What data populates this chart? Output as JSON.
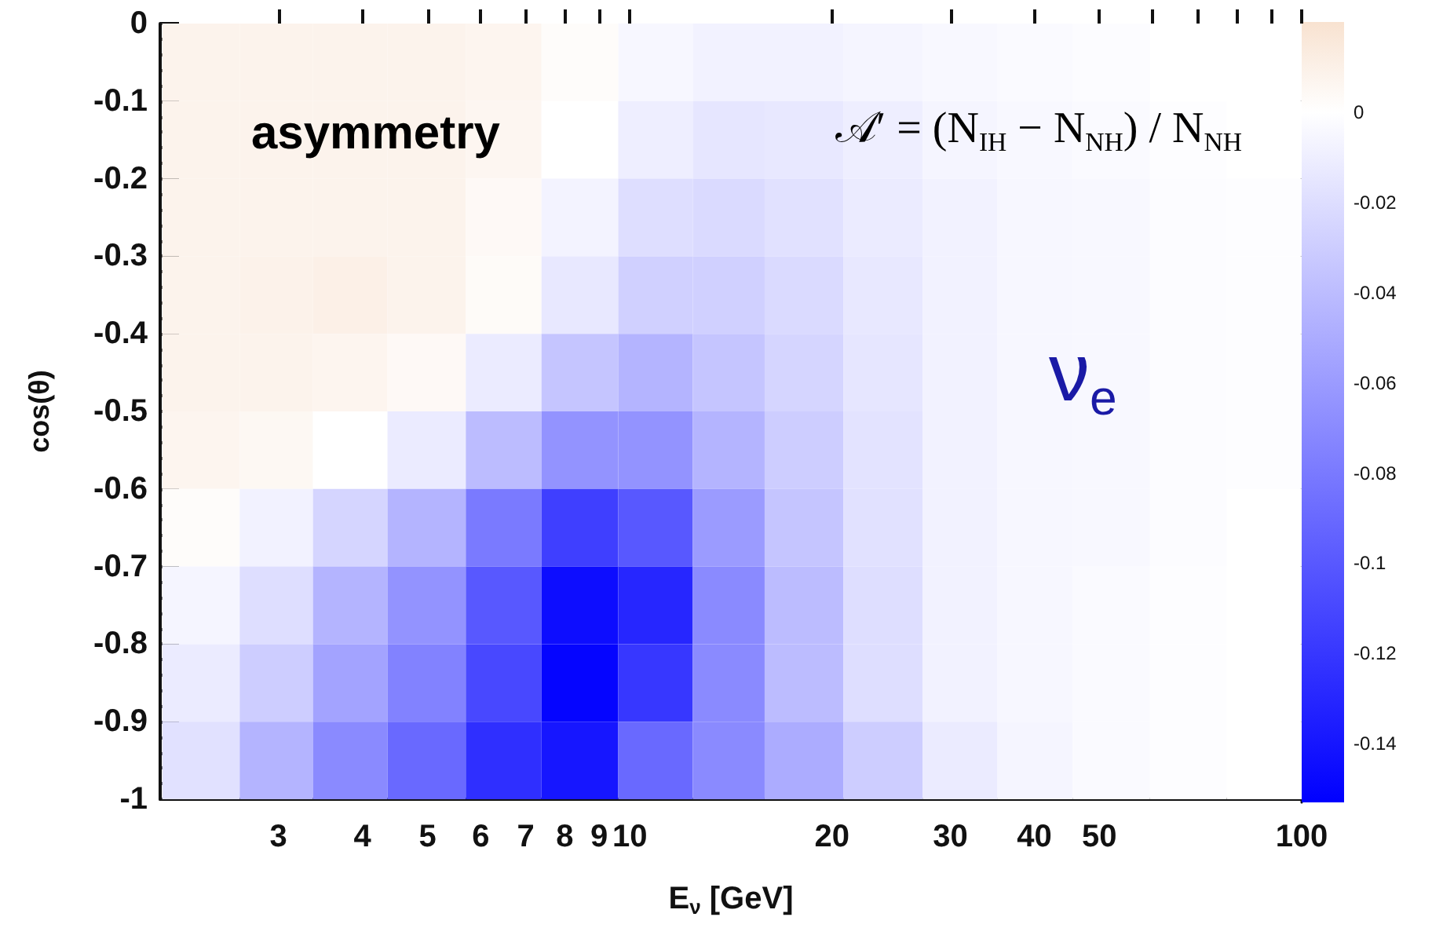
{
  "chart_data": {
    "type": "heatmap",
    "xlabel": "E$_{ν}$ [GeV]",
    "ylabel": "cos(θ)",
    "log": "x",
    "xlim": [
      2,
      100
    ],
    "xticks": [
      3,
      4,
      5,
      6,
      7,
      8,
      9,
      10,
      20,
      30,
      40,
      50,
      {
        "value": 60,
        "label": null
      },
      {
        "value": 70,
        "label": null
      },
      {
        "value": 80,
        "label": null
      },
      {
        "value": 90,
        "label": null
      },
      100
    ],
    "ylim": [
      -1,
      0
    ],
    "yticks": [
      0,
      -0.1,
      -0.2,
      -0.3,
      -0.4,
      -0.5,
      -0.6,
      -0.7,
      -0.8,
      -0.9,
      -1
    ],
    "x": [
      2.3,
      3,
      3.8,
      5,
      6.5,
      8.4,
      11,
      14,
      18,
      24,
      31,
      40,
      52,
      68,
      88
    ],
    "cells": [
      [
        0.008,
        0.008,
        0.008,
        0.008,
        0.007,
        0.002,
        -0.005,
        -0.008,
        -0.008,
        -0.006,
        -0.004,
        -0.003,
        -0.002,
        0,
        0
      ],
      [
        0.008,
        0.008,
        0.008,
        0.008,
        0.006,
        0,
        -0.01,
        -0.015,
        -0.014,
        -0.01,
        -0.006,
        -0.004,
        -0.003,
        -0.001,
        0
      ],
      [
        0.008,
        0.008,
        0.008,
        0.008,
        0.004,
        -0.007,
        -0.02,
        -0.022,
        -0.018,
        -0.012,
        -0.008,
        -0.005,
        -0.004,
        -0.002,
        -0.001
      ],
      [
        0.008,
        0.009,
        0.01,
        0.008,
        0.003,
        -0.014,
        -0.028,
        -0.028,
        -0.022,
        -0.014,
        -0.008,
        -0.005,
        -0.004,
        -0.002,
        -0.001
      ],
      [
        0.008,
        0.008,
        0.007,
        0.004,
        -0.012,
        -0.035,
        -0.045,
        -0.035,
        -0.025,
        -0.015,
        -0.008,
        -0.005,
        -0.004,
        -0.002,
        -0.001
      ],
      [
        0.007,
        0.005,
        0,
        -0.012,
        -0.04,
        -0.065,
        -0.065,
        -0.045,
        -0.03,
        -0.017,
        -0.008,
        -0.005,
        -0.004,
        -0.002,
        -0.001
      ],
      [
        0.002,
        -0.008,
        -0.025,
        -0.045,
        -0.08,
        -0.115,
        -0.1,
        -0.06,
        -0.035,
        -0.018,
        -0.008,
        -0.005,
        -0.004,
        -0.002,
        0
      ],
      [
        -0.006,
        -0.02,
        -0.045,
        -0.065,
        -0.1,
        -0.145,
        -0.13,
        -0.07,
        -0.04,
        -0.02,
        -0.008,
        -0.005,
        -0.003,
        -0.001,
        0
      ],
      [
        -0.012,
        -0.03,
        -0.055,
        -0.075,
        -0.11,
        -0.15,
        -0.12,
        -0.07,
        -0.04,
        -0.02,
        -0.008,
        -0.005,
        -0.003,
        -0.001,
        0
      ],
      [
        -0.018,
        -0.045,
        -0.07,
        -0.09,
        -0.125,
        -0.14,
        -0.09,
        -0.07,
        -0.05,
        -0.03,
        -0.012,
        -0.006,
        -0.003,
        -0.001,
        0
      ]
    ],
    "colors": [
      "#0000ff",
      "#ffffff",
      "#f8e2d0"
    ],
    "clim": [
      -0.153,
      0.02
    ],
    "cticks": [
      0,
      -0.02,
      -0.04,
      -0.06,
      -0.08,
      -0.1,
      -0.12,
      -0.14
    ],
    "annotations": [
      "asymmetry",
      "𝒜′ = (N$_{IH}$ − N$_{NH}$) / N$_{NH}$",
      "ν$_{e}$"
    ]
  }
}
